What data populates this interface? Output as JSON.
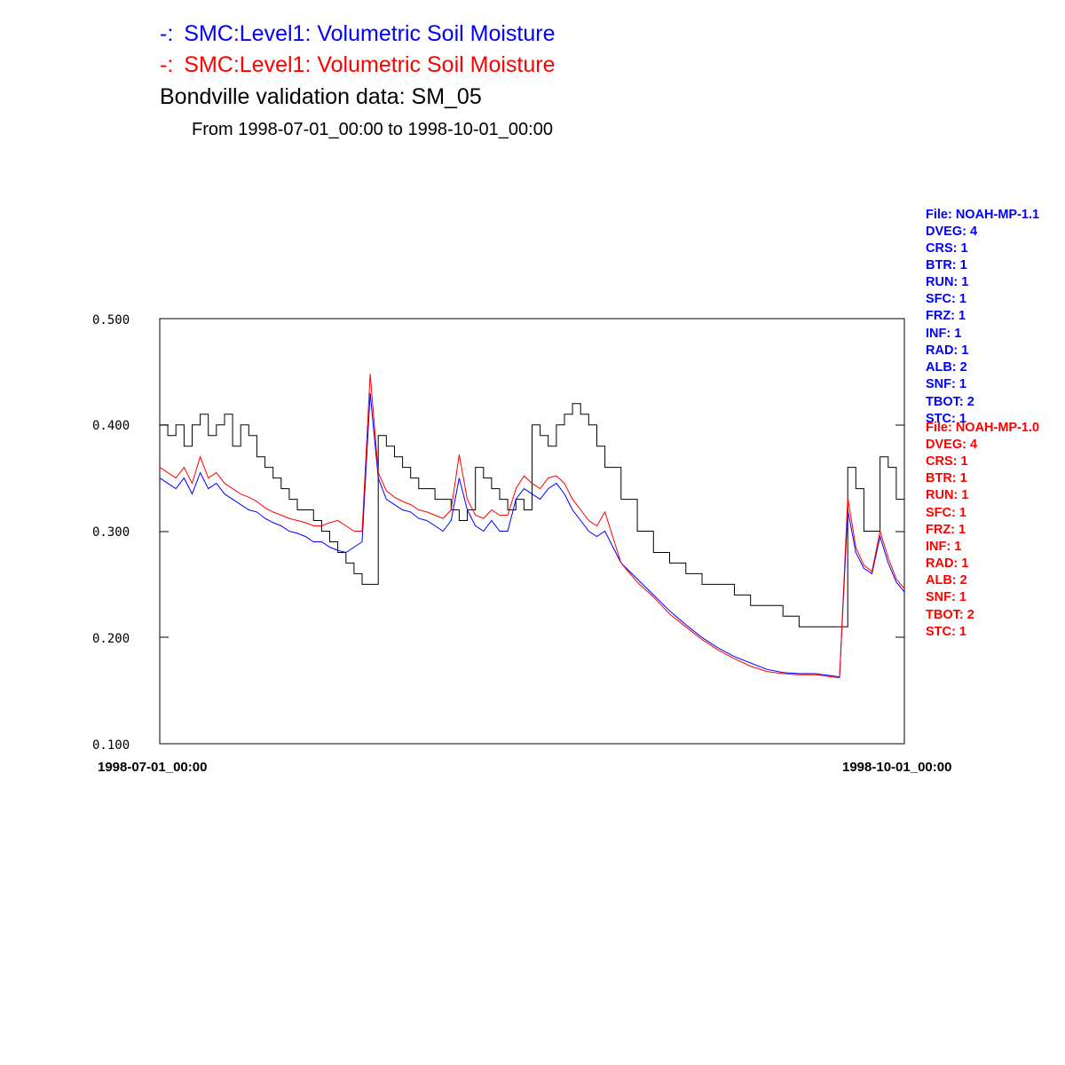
{
  "colors": {
    "series1": "#0000ff",
    "series2": "#ff0000",
    "observed": "#000000",
    "axis": "#000000"
  },
  "chart_data": {
    "type": "line",
    "title_lines": [
      {
        "prefix": "-:",
        "text": "SMC:Level1: Volumetric Soil Moisture",
        "color": "#0000ff"
      },
      {
        "prefix": "-:",
        "text": "SMC:Level1: Volumetric Soil Moisture",
        "color": "#ff0000"
      }
    ],
    "title": "Bondville validation data:  SM_05",
    "subtitle": "From 1998-07-01_00:00 to 1998-10-01_00:00",
    "xlabel": "",
    "ylabel": "",
    "xlim": [
      "1998-07-01",
      "1998-10-01"
    ],
    "ylim": [
      0.1,
      0.5
    ],
    "yticks": [
      "0.100",
      "0.200",
      "0.300",
      "0.400",
      "0.500"
    ],
    "xtick_labels": [
      "1998-07-01_00:00",
      "1998-10-01_00:00"
    ],
    "grid": false,
    "legend_blocks": [
      {
        "color": "#0000ff",
        "lines": [
          "File: NOAH-MP-1.1",
          "DVEG: 4",
          "CRS: 1",
          "BTR: 1",
          "RUN: 1",
          "SFC: 1",
          "FRZ: 1",
          "INF: 1",
          "RAD: 1",
          "ALB: 2",
          "SNF: 1",
          "TBOT: 2",
          "STC: 1"
        ]
      },
      {
        "color": "#ff0000",
        "lines": [
          "File: NOAH-MP-1.0",
          "DVEG: 4",
          "CRS: 1",
          "BTR: 1",
          "RUN: 1",
          "SFC: 1",
          "FRZ: 1",
          "INF: 1",
          "RAD: 1",
          "ALB: 2",
          "SNF: 1",
          "TBOT: 2",
          "STC: 1"
        ]
      }
    ],
    "series": [
      {
        "color": "#000000",
        "step": true,
        "x": [
          "1998-07-01",
          "1998-07-02",
          "1998-07-03",
          "1998-07-04",
          "1998-07-05",
          "1998-07-06",
          "1998-07-07",
          "1998-07-08",
          "1998-07-09",
          "1998-07-10",
          "1998-07-11",
          "1998-07-12",
          "1998-07-13",
          "1998-07-14",
          "1998-07-15",
          "1998-07-16",
          "1998-07-17",
          "1998-07-18",
          "1998-07-19",
          "1998-07-20",
          "1998-07-21",
          "1998-07-22",
          "1998-07-23",
          "1998-07-24",
          "1998-07-25",
          "1998-07-26",
          "1998-07-27",
          "1998-07-28",
          "1998-07-29",
          "1998-07-30",
          "1998-07-31",
          "1998-08-01",
          "1998-08-02",
          "1998-08-03",
          "1998-08-04",
          "1998-08-05",
          "1998-08-06",
          "1998-08-07",
          "1998-08-08",
          "1998-08-09",
          "1998-08-10",
          "1998-08-11",
          "1998-08-12",
          "1998-08-13",
          "1998-08-14",
          "1998-08-15",
          "1998-08-16",
          "1998-08-17",
          "1998-08-18",
          "1998-08-19",
          "1998-08-20",
          "1998-08-21",
          "1998-08-22",
          "1998-08-23",
          "1998-08-24",
          "1998-08-25",
          "1998-08-27",
          "1998-08-29",
          "1998-08-31",
          "1998-09-02",
          "1998-09-04",
          "1998-09-06",
          "1998-09-08",
          "1998-09-10",
          "1998-09-12",
          "1998-09-14",
          "1998-09-16",
          "1998-09-18",
          "1998-09-20",
          "1998-09-21",
          "1998-09-22",
          "1998-09-23",
          "1998-09-24",
          "1998-09-25",
          "1998-09-26",
          "1998-09-27",
          "1998-09-28",
          "1998-09-29",
          "1998-09-30",
          "1998-10-01"
        ],
        "y": [
          0.4,
          0.39,
          0.4,
          0.38,
          0.4,
          0.41,
          0.39,
          0.4,
          0.41,
          0.38,
          0.4,
          0.39,
          0.37,
          0.36,
          0.35,
          0.34,
          0.33,
          0.32,
          0.32,
          0.31,
          0.3,
          0.29,
          0.28,
          0.27,
          0.26,
          0.25,
          0.25,
          0.39,
          0.38,
          0.37,
          0.36,
          0.35,
          0.34,
          0.34,
          0.33,
          0.33,
          0.32,
          0.31,
          0.32,
          0.36,
          0.35,
          0.34,
          0.33,
          0.32,
          0.33,
          0.32,
          0.4,
          0.39,
          0.38,
          0.4,
          0.41,
          0.42,
          0.41,
          0.4,
          0.38,
          0.36,
          0.33,
          0.3,
          0.28,
          0.27,
          0.26,
          0.25,
          0.25,
          0.24,
          0.23,
          0.23,
          0.22,
          0.21,
          0.21,
          0.21,
          0.21,
          0.21,
          0.36,
          0.34,
          0.3,
          0.3,
          0.37,
          0.36,
          0.33,
          0.31
        ]
      },
      {
        "color": "#0000ff",
        "step": false,
        "x": [
          "1998-07-01",
          "1998-07-02",
          "1998-07-03",
          "1998-07-04",
          "1998-07-05",
          "1998-07-06",
          "1998-07-07",
          "1998-07-08",
          "1998-07-09",
          "1998-07-10",
          "1998-07-11",
          "1998-07-12",
          "1998-07-13",
          "1998-07-14",
          "1998-07-15",
          "1998-07-16",
          "1998-07-17",
          "1998-07-18",
          "1998-07-19",
          "1998-07-20",
          "1998-07-21",
          "1998-07-22",
          "1998-07-23",
          "1998-07-24",
          "1998-07-25",
          "1998-07-26",
          "1998-07-27",
          "1998-07-28",
          "1998-07-29",
          "1998-07-30",
          "1998-07-31",
          "1998-08-01",
          "1998-08-02",
          "1998-08-03",
          "1998-08-04",
          "1998-08-05",
          "1998-08-06",
          "1998-08-07",
          "1998-08-08",
          "1998-08-09",
          "1998-08-10",
          "1998-08-11",
          "1998-08-12",
          "1998-08-13",
          "1998-08-14",
          "1998-08-15",
          "1998-08-16",
          "1998-08-17",
          "1998-08-18",
          "1998-08-19",
          "1998-08-20",
          "1998-08-21",
          "1998-08-22",
          "1998-08-23",
          "1998-08-24",
          "1998-08-25",
          "1998-08-27",
          "1998-08-29",
          "1998-08-31",
          "1998-09-02",
          "1998-09-04",
          "1998-09-06",
          "1998-09-08",
          "1998-09-10",
          "1998-09-12",
          "1998-09-14",
          "1998-09-16",
          "1998-09-18",
          "1998-09-20",
          "1998-09-21",
          "1998-09-22",
          "1998-09-23",
          "1998-09-24",
          "1998-09-25",
          "1998-09-26",
          "1998-09-27",
          "1998-09-28",
          "1998-09-29",
          "1998-09-30",
          "1998-10-01"
        ],
        "y": [
          0.35,
          0.345,
          0.34,
          0.35,
          0.335,
          0.355,
          0.34,
          0.345,
          0.335,
          0.33,
          0.325,
          0.32,
          0.318,
          0.312,
          0.308,
          0.305,
          0.3,
          0.298,
          0.295,
          0.29,
          0.29,
          0.285,
          0.282,
          0.28,
          0.285,
          0.29,
          0.43,
          0.35,
          0.33,
          0.325,
          0.32,
          0.318,
          0.312,
          0.31,
          0.305,
          0.3,
          0.31,
          0.35,
          0.32,
          0.305,
          0.3,
          0.31,
          0.3,
          0.3,
          0.33,
          0.34,
          0.335,
          0.33,
          0.34,
          0.345,
          0.335,
          0.32,
          0.31,
          0.3,
          0.295,
          0.3,
          0.27,
          0.255,
          0.24,
          0.225,
          0.212,
          0.2,
          0.19,
          0.182,
          0.176,
          0.17,
          0.167,
          0.166,
          0.166,
          0.165,
          0.164,
          0.163,
          0.32,
          0.28,
          0.265,
          0.26,
          0.295,
          0.27,
          0.252,
          0.243
        ]
      },
      {
        "color": "#ff0000",
        "step": false,
        "x": [
          "1998-07-01",
          "1998-07-02",
          "1998-07-03",
          "1998-07-04",
          "1998-07-05",
          "1998-07-06",
          "1998-07-07",
          "1998-07-08",
          "1998-07-09",
          "1998-07-10",
          "1998-07-11",
          "1998-07-12",
          "1998-07-13",
          "1998-07-14",
          "1998-07-15",
          "1998-07-16",
          "1998-07-17",
          "1998-07-18",
          "1998-07-19",
          "1998-07-20",
          "1998-07-21",
          "1998-07-22",
          "1998-07-23",
          "1998-07-24",
          "1998-07-25",
          "1998-07-26",
          "1998-07-27",
          "1998-07-28",
          "1998-07-29",
          "1998-07-30",
          "1998-07-31",
          "1998-08-01",
          "1998-08-02",
          "1998-08-03",
          "1998-08-04",
          "1998-08-05",
          "1998-08-06",
          "1998-08-07",
          "1998-08-08",
          "1998-08-09",
          "1998-08-10",
          "1998-08-11",
          "1998-08-12",
          "1998-08-13",
          "1998-08-14",
          "1998-08-15",
          "1998-08-16",
          "1998-08-17",
          "1998-08-18",
          "1998-08-19",
          "1998-08-20",
          "1998-08-21",
          "1998-08-22",
          "1998-08-23",
          "1998-08-24",
          "1998-08-25",
          "1998-08-27",
          "1998-08-29",
          "1998-08-31",
          "1998-09-02",
          "1998-09-04",
          "1998-09-06",
          "1998-09-08",
          "1998-09-10",
          "1998-09-12",
          "1998-09-14",
          "1998-09-16",
          "1998-09-18",
          "1998-09-20",
          "1998-09-21",
          "1998-09-22",
          "1998-09-23",
          "1998-09-24",
          "1998-09-25",
          "1998-09-26",
          "1998-09-27",
          "1998-09-28",
          "1998-09-29",
          "1998-09-30",
          "1998-10-01"
        ],
        "y": [
          0.36,
          0.355,
          0.35,
          0.36,
          0.345,
          0.37,
          0.35,
          0.355,
          0.345,
          0.34,
          0.335,
          0.332,
          0.328,
          0.322,
          0.318,
          0.315,
          0.312,
          0.31,
          0.308,
          0.305,
          0.305,
          0.308,
          0.31,
          0.305,
          0.3,
          0.3,
          0.448,
          0.355,
          0.338,
          0.332,
          0.328,
          0.325,
          0.32,
          0.318,
          0.315,
          0.312,
          0.32,
          0.372,
          0.33,
          0.315,
          0.312,
          0.32,
          0.315,
          0.315,
          0.34,
          0.352,
          0.345,
          0.34,
          0.35,
          0.352,
          0.345,
          0.33,
          0.32,
          0.31,
          0.305,
          0.318,
          0.27,
          0.252,
          0.238,
          0.222,
          0.21,
          0.198,
          0.188,
          0.18,
          0.173,
          0.168,
          0.166,
          0.165,
          0.165,
          0.164,
          0.163,
          0.162,
          0.332,
          0.285,
          0.268,
          0.262,
          0.3,
          0.275,
          0.255,
          0.246
        ]
      }
    ]
  }
}
